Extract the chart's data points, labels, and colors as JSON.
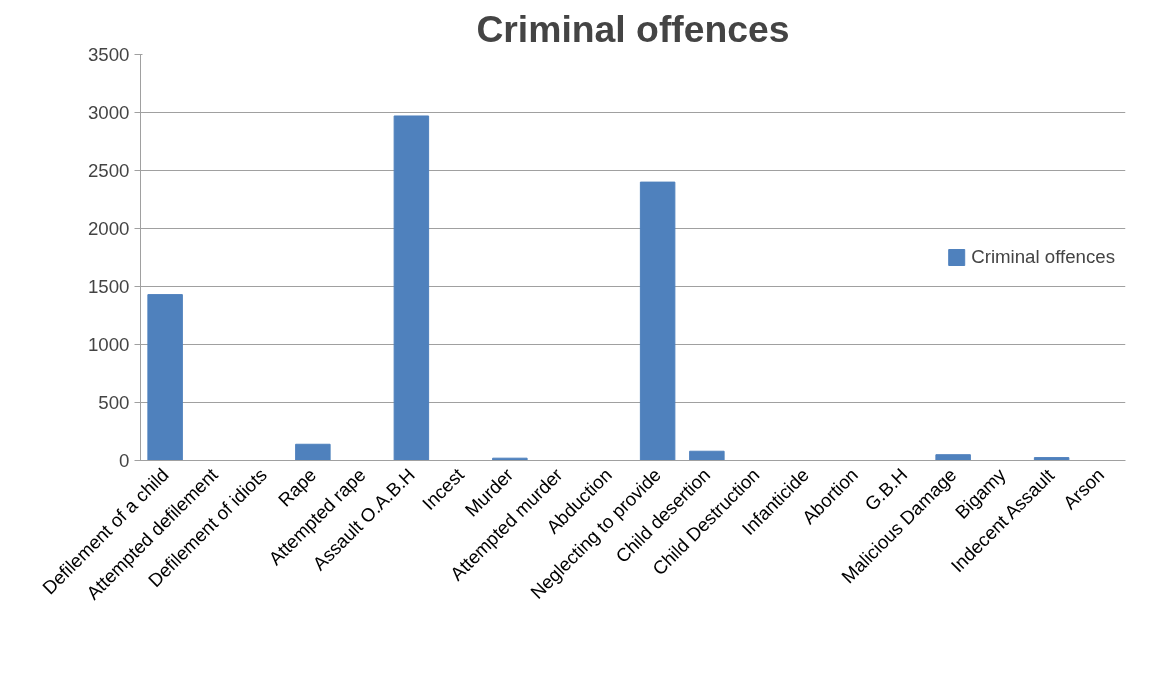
{
  "chart_data": {
    "type": "bar",
    "title": "Criminal offences",
    "categories": [
      "Defilement of a child",
      "Attempted defilement",
      "Defilement of idiots",
      "Rape",
      "Attempted rape",
      "Assault O.A.B.H",
      "Incest",
      "Murder",
      "Attempted murder",
      "Abduction",
      "Neglecting to provide",
      "Child desertion",
      "Child Destruction",
      "Infanticide",
      "Abortion",
      "G.B.H",
      "Malicious Damage",
      "Bigamy",
      "Indecent Assault",
      "Arson"
    ],
    "series": [
      {
        "name": "Criminal offences",
        "color": "#4f81bd",
        "values": [
          1430,
          0,
          0,
          140,
          0,
          2970,
          0,
          20,
          0,
          0,
          2400,
          80,
          0,
          0,
          0,
          0,
          50,
          0,
          25,
          0
        ]
      }
    ],
    "ylim": [
      0,
      3500
    ],
    "yticks": [
      0,
      500,
      1000,
      1500,
      2000,
      2500,
      3000,
      3500
    ],
    "grid": "y",
    "legend": "right"
  }
}
